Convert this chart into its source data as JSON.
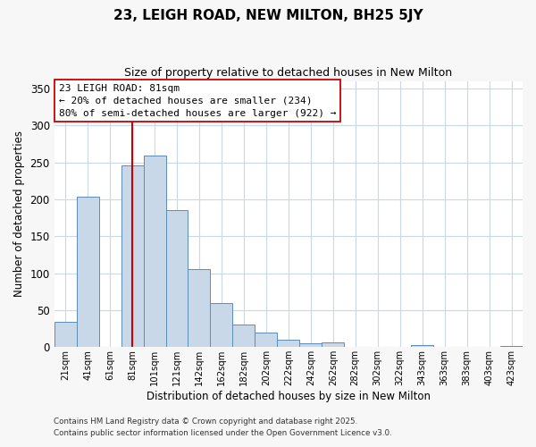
{
  "title": "23, LEIGH ROAD, NEW MILTON, BH25 5JY",
  "subtitle": "Size of property relative to detached houses in New Milton",
  "xlabel": "Distribution of detached houses by size in New Milton",
  "ylabel": "Number of detached properties",
  "footnote1": "Contains HM Land Registry data © Crown copyright and database right 2025.",
  "footnote2": "Contains public sector information licensed under the Open Government Licence v3.0.",
  "bar_labels": [
    "21sqm",
    "41sqm",
    "61sqm",
    "81sqm",
    "101sqm",
    "121sqm",
    "142sqm",
    "162sqm",
    "182sqm",
    "202sqm",
    "222sqm",
    "242sqm",
    "262sqm",
    "282sqm",
    "302sqm",
    "322sqm",
    "343sqm",
    "363sqm",
    "383sqm",
    "403sqm",
    "423sqm"
  ],
  "bar_values": [
    34,
    203,
    0,
    246,
    259,
    185,
    106,
    60,
    30,
    20,
    10,
    5,
    6,
    0,
    0,
    0,
    3,
    0,
    0,
    0,
    1
  ],
  "bar_color": "#c8d8e8",
  "bar_edge_color": "#5b8db8",
  "vline_x_index": 3,
  "vline_color": "#cc0000",
  "ylim": [
    0,
    360
  ],
  "yticks": [
    0,
    50,
    100,
    150,
    200,
    250,
    300,
    350
  ],
  "annotation_title": "23 LEIGH ROAD: 81sqm",
  "annotation_line1": "← 20% of detached houses are smaller (234)",
  "annotation_line2": "80% of semi-detached houses are larger (922) →",
  "background_color": "#f7f7f7",
  "plot_bg_color": "#ffffff",
  "grid_color": "#c8d8e8"
}
